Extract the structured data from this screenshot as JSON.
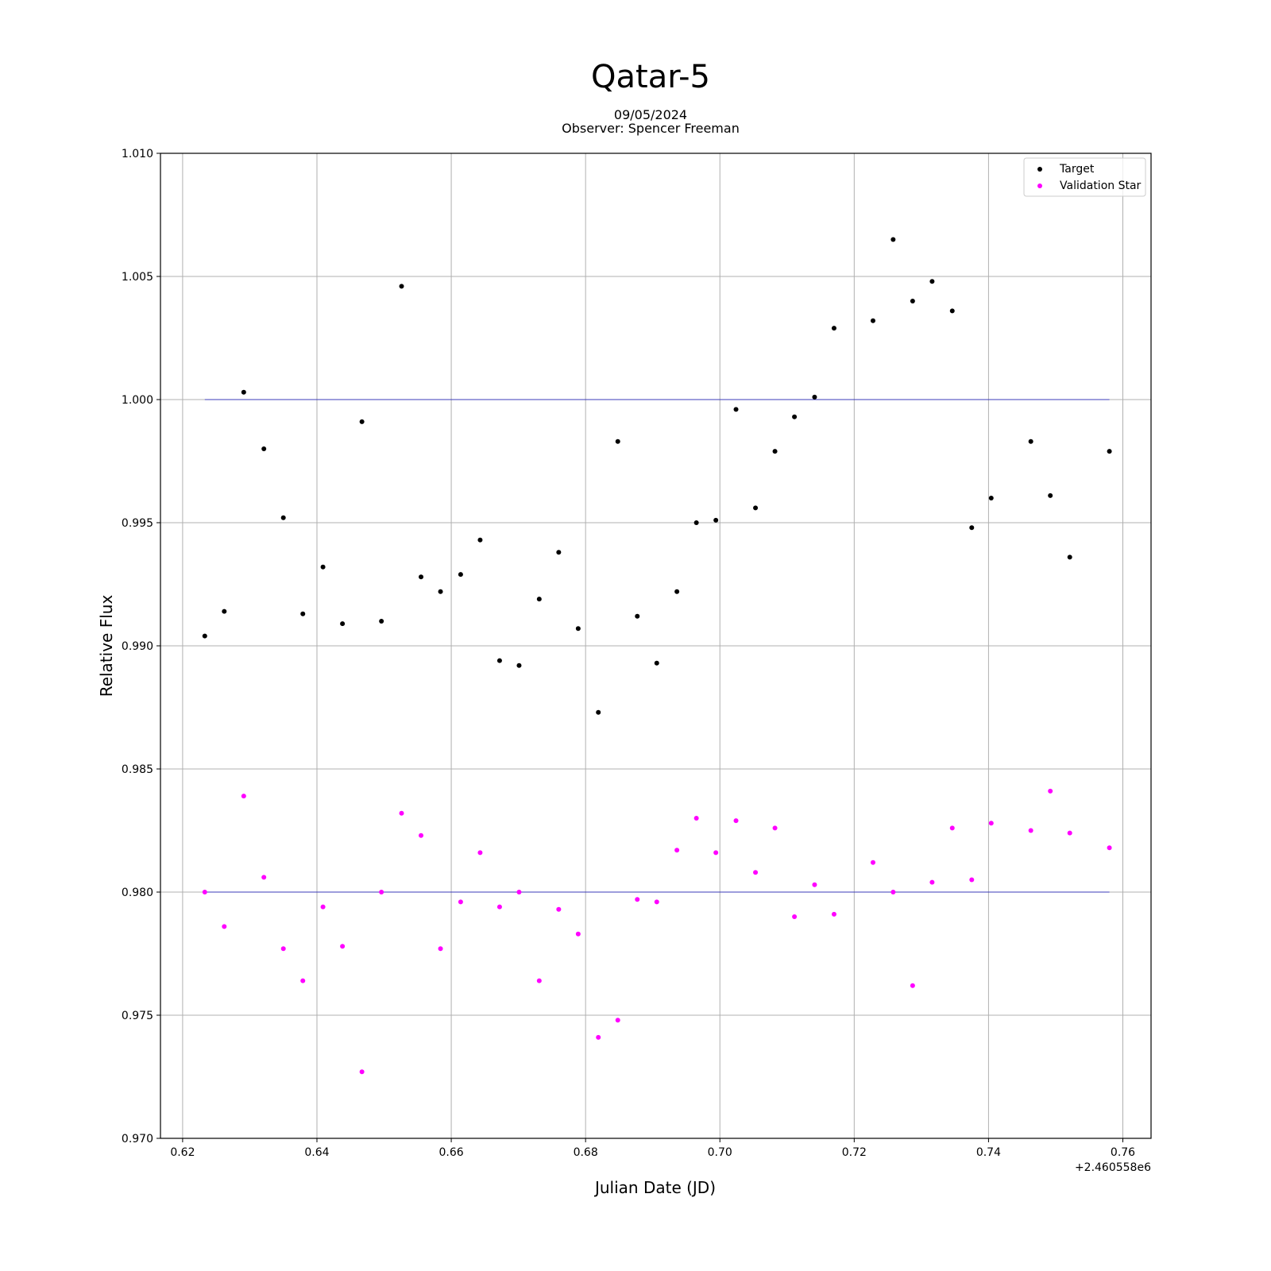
{
  "chart_data": {
    "type": "scatter",
    "title": "Qatar-5",
    "subtitle_lines": [
      "09/05/2024",
      "Observer: Spencer Freeman"
    ],
    "xlabel": "Julian Date (JD)",
    "ylabel": "Relative Flux",
    "x_offset_label": "+2.460558e6",
    "xlim": [
      0.6167,
      0.7642
    ],
    "ylim": [
      0.97,
      1.01
    ],
    "xticks": [
      0.62,
      0.64,
      0.66,
      0.68,
      0.7,
      0.72,
      0.74,
      0.76
    ],
    "xtick_labels": [
      "0.62",
      "0.64",
      "0.66",
      "0.68",
      "0.70",
      "0.72",
      "0.74",
      "0.76"
    ],
    "yticks": [
      0.97,
      0.975,
      0.98,
      0.985,
      0.99,
      0.995,
      1.0,
      1.005,
      1.01
    ],
    "ytick_labels": [
      "0.970",
      "0.975",
      "0.980",
      "0.985",
      "0.990",
      "0.995",
      "1.000",
      "1.005",
      "1.010"
    ],
    "grid": true,
    "legend_position": "top-right",
    "reference_lines": [
      {
        "y": 1.0,
        "x_start": 0.6233,
        "x_end": 0.758,
        "color": "#3b3bb8"
      },
      {
        "y": 0.98,
        "x_start": 0.6233,
        "x_end": 0.758,
        "color": "#3b3bb8"
      }
    ],
    "x": [
      0.6233,
      0.6262,
      0.6291,
      0.6321,
      0.635,
      0.6379,
      0.6409,
      0.6438,
      0.6467,
      0.6496,
      0.6526,
      0.6555,
      0.6584,
      0.6614,
      0.6643,
      0.6672,
      0.6701,
      0.6731,
      0.676,
      0.6789,
      0.6819,
      0.6848,
      0.6877,
      0.6906,
      0.6936,
      0.6965,
      0.6994,
      0.7024,
      0.7053,
      0.7082,
      0.7111,
      0.7141,
      0.717,
      0.7228,
      0.7258,
      0.7287,
      0.7316,
      0.7346,
      0.7375,
      0.7404,
      0.7463,
      0.7492,
      0.7521,
      0.758
    ],
    "series": [
      {
        "name": "Target",
        "color": "#000000",
        "values": [
          0.9904,
          0.9914,
          1.0003,
          0.998,
          0.9952,
          0.9913,
          0.9932,
          0.9909,
          0.9991,
          0.991,
          1.0046,
          0.9928,
          0.9922,
          0.9929,
          0.9943,
          0.9894,
          0.9892,
          0.9919,
          0.9938,
          0.9907,
          0.9873,
          0.9983,
          0.9912,
          0.9893,
          0.9922,
          0.995,
          0.9951,
          0.9996,
          0.9956,
          0.9979,
          0.9993,
          1.0001,
          1.0029,
          1.0032,
          1.0065,
          1.004,
          1.0048,
          1.0036,
          0.9948,
          0.996,
          0.9983,
          0.9961,
          0.9936,
          0.9979
        ]
      },
      {
        "name": "Validation Star",
        "color": "#ff00ff",
        "values": [
          0.98,
          0.9786,
          0.9839,
          0.9806,
          0.9777,
          0.9764,
          0.9794,
          0.9778,
          0.9727,
          0.98,
          0.9832,
          0.9823,
          0.9777,
          0.9796,
          0.9816,
          0.9794,
          0.98,
          0.9764,
          0.9793,
          0.9783,
          0.9741,
          0.9748,
          0.9797,
          0.9796,
          0.9817,
          0.983,
          0.9816,
          0.9829,
          0.9808,
          0.9826,
          0.979,
          0.9803,
          0.9791,
          0.9812,
          0.98,
          0.9762,
          0.9804,
          0.9826,
          0.9805,
          0.9828,
          0.9825,
          0.9841,
          0.9824,
          0.9818
        ]
      }
    ]
  }
}
